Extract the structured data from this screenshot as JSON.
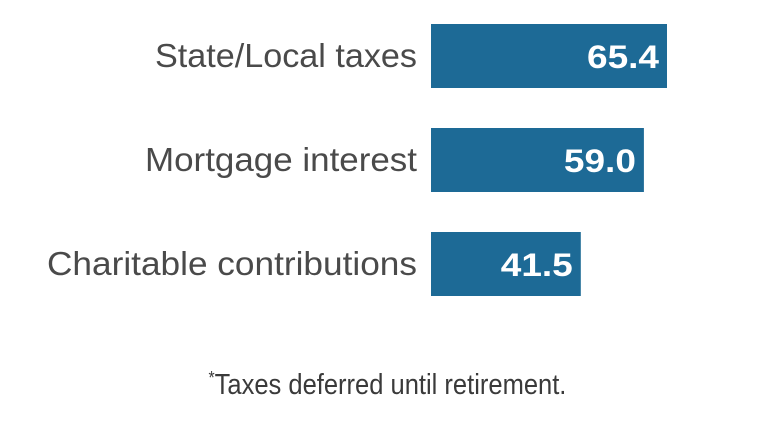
{
  "chart_data": {
    "type": "bar",
    "orientation": "horizontal",
    "categories": [
      "State/Local taxes",
      "Mortgage interest",
      "Charitable contributions"
    ],
    "values": [
      65.4,
      59.0,
      41.5
    ],
    "value_labels": [
      "65.4",
      "59.0",
      "41.5"
    ],
    "bar_color": "#1d6a96",
    "title": "",
    "xlabel": "",
    "ylabel": "",
    "grid": false,
    "legend": "none"
  },
  "footnote": {
    "marker": "*",
    "text": "Taxes deferred until retirement."
  }
}
